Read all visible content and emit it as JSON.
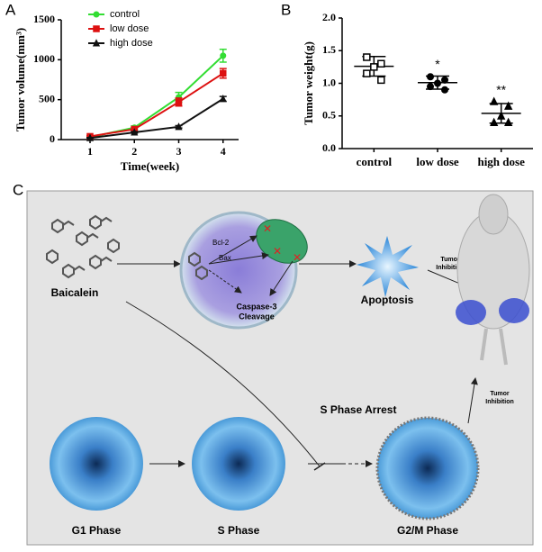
{
  "chart_data": [
    {
      "type": "line",
      "panel_label": "A",
      "xlabel": "Time(week)",
      "ylabel": "Tumor volume(mm³)",
      "x": [
        1,
        2,
        3,
        4
      ],
      "xlim": [
        0.35,
        4.35
      ],
      "xticks": [
        1,
        2,
        3,
        4
      ],
      "ylim": [
        0,
        1500
      ],
      "yticks": [
        0,
        500,
        1000,
        1500
      ],
      "legend": "upper left",
      "series": [
        {
          "name": "control",
          "color": "#33dd33",
          "marker": "circle",
          "values": [
            30,
            150,
            530,
            1050
          ],
          "errors": [
            15,
            20,
            60,
            80
          ]
        },
        {
          "name": "low dose",
          "color": "#dd1111",
          "marker": "square",
          "values": [
            40,
            130,
            470,
            830
          ],
          "errors": [
            10,
            20,
            50,
            60
          ]
        },
        {
          "name": "high dose",
          "color": "#111111",
          "marker": "triangle",
          "values": [
            20,
            90,
            160,
            510
          ],
          "errors": [
            5,
            10,
            15,
            30
          ]
        }
      ]
    },
    {
      "type": "dot",
      "panel_label": "B",
      "ylabel": "Tumor weight(g)",
      "categories": [
        "control",
        "low dose",
        "high dose"
      ],
      "markers": [
        "square",
        "circle",
        "triangle"
      ],
      "points": [
        [
          1.4,
          1.3,
          1.25,
          1.15,
          1.05
        ],
        [
          1.1,
          1.05,
          1.0,
          0.95,
          0.9
        ],
        [
          0.72,
          0.65,
          0.5,
          0.4,
          0.4
        ]
      ],
      "means": [
        1.26,
        1.01,
        0.54
      ],
      "sds": [
        0.15,
        0.1,
        0.15
      ],
      "annotations": [
        null,
        "*",
        "**"
      ],
      "ylim": [
        0,
        2.0
      ],
      "yticks": [
        {
          "value": 0,
          "label": "0.0"
        },
        0.5,
        {
          "value": 1,
          "label": "1.0"
        },
        1.5,
        {
          "value": 2,
          "label": "2.0"
        }
      ]
    }
  ],
  "diagram": {
    "panel_label": "C",
    "baicalein": "Baicalein",
    "bcl2": "Bcl-2",
    "bax": "Bax",
    "caspase": [
      "Caspase-3",
      "Cleavage"
    ],
    "apoptosis": "Apoptosis",
    "tumor_inhibition_top": [
      "Tumor",
      "Inhibition"
    ],
    "tumor_inhibition_bottom": [
      "Tumor",
      "Inhibition"
    ],
    "arrest": "S Phase Arrest",
    "phases": [
      "G1 Phase",
      "S Phase",
      "G2/M Phase"
    ]
  }
}
